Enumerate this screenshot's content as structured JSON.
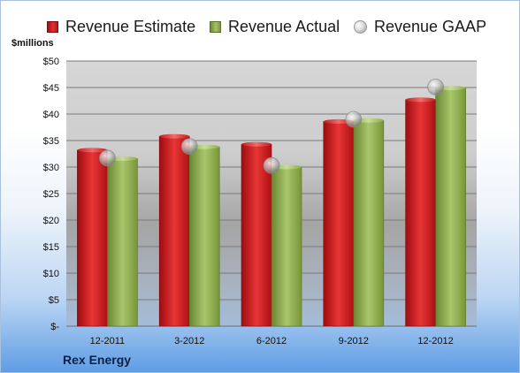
{
  "legend": {
    "estimate": "Revenue Estimate",
    "actual": "Revenue Actual",
    "gaap": "Revenue GAAP"
  },
  "unit_label": "$millions",
  "company": "Rex Energy",
  "colors": {
    "estimate": "#d42a2a",
    "actual": "#9bbb59",
    "gaap": "#c0c0c0"
  },
  "chart_data": {
    "type": "bar",
    "title": "",
    "xlabel": "",
    "ylabel": "$millions",
    "ylim": [
      0,
      50
    ],
    "y_ticks": [
      0,
      5,
      10,
      15,
      20,
      25,
      30,
      35,
      40,
      45,
      50
    ],
    "y_tick_labels": [
      "$-",
      "$5",
      "$10",
      "$15",
      "$20",
      "$25",
      "$30",
      "$35",
      "$40",
      "$45",
      "$50"
    ],
    "categories": [
      "12-2011",
      "3-2012",
      "6-2012",
      "9-2012",
      "12-2012"
    ],
    "series": [
      {
        "name": "Revenue Estimate",
        "type": "bar",
        "values": [
          33.2,
          35.8,
          34.3,
          38.6,
          42.7
        ]
      },
      {
        "name": "Revenue Actual",
        "type": "bar",
        "values": [
          31.6,
          33.8,
          30.0,
          38.8,
          44.9
        ]
      },
      {
        "name": "Revenue GAAP",
        "type": "scatter",
        "values": [
          31.7,
          33.9,
          30.3,
          39.0,
          45.1
        ]
      }
    ],
    "grid": true,
    "legend_position": "top"
  }
}
